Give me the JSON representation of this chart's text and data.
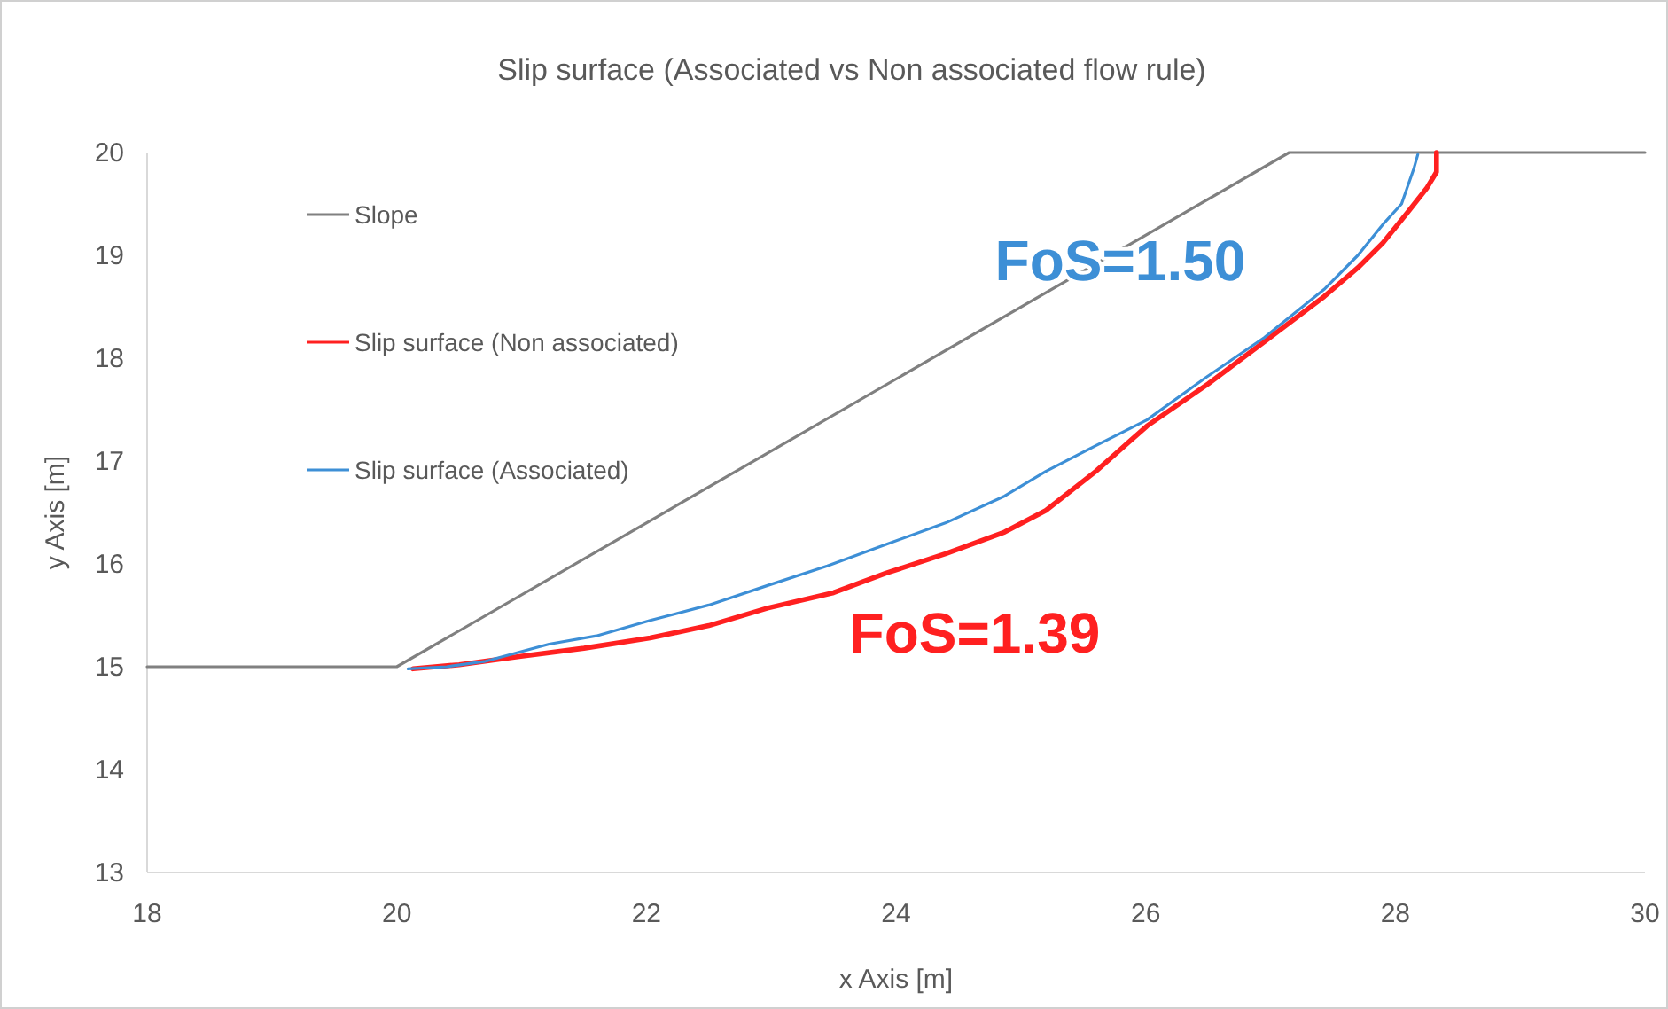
{
  "chart_data": {
    "type": "line",
    "title": "Slip surface (Associated vs Non associated flow rule)",
    "xlabel": "x Axis [m]",
    "ylabel": "y Axis [m]",
    "xlim": [
      18,
      30
    ],
    "xticks": [
      18,
      20,
      22,
      24,
      26,
      28,
      30
    ],
    "ylim": [
      13,
      20
    ],
    "yticks": [
      13,
      14,
      15,
      16,
      17,
      18,
      19,
      20
    ],
    "grid": false,
    "legend": "top left",
    "marker": "none",
    "line_style": "solid",
    "series": [
      {
        "name": "Slope",
        "color": "#808080",
        "x": [
          18,
          20,
          27.15,
          30
        ],
        "values": [
          15,
          15,
          20,
          20
        ]
      },
      {
        "name": "Slip surface (Non associated)",
        "color": "#ff2020",
        "x": [
          20.13,
          20.5,
          20.98,
          21.5,
          22.03,
          22.5,
          22.97,
          23.5,
          23.92,
          24.4,
          24.87,
          25.2,
          25.6,
          26.01,
          26.5,
          26.95,
          27.43,
          27.7,
          27.9,
          28.1,
          28.25,
          28.33,
          28.33
        ],
        "values": [
          14.98,
          15.02,
          15.1,
          15.18,
          15.28,
          15.4,
          15.57,
          15.72,
          15.91,
          16.1,
          16.31,
          16.52,
          16.9,
          17.34,
          17.75,
          18.16,
          18.6,
          18.88,
          19.12,
          19.42,
          19.65,
          19.81,
          20
        ]
      },
      {
        "name": "Slip surface (Associated)",
        "color": "#3d8fd6",
        "x": [
          20.09,
          20.4,
          20.7,
          21.22,
          21.6,
          22.03,
          22.5,
          22.97,
          23.45,
          23.92,
          24.4,
          24.87,
          25.2,
          25.6,
          26.01,
          26.48,
          26.95,
          27.43,
          27.7,
          27.9,
          28.05,
          28.09,
          28.15,
          28.18
        ],
        "values": [
          14.98,
          15,
          15.05,
          15.22,
          15.3,
          15.45,
          15.6,
          15.79,
          15.98,
          16.19,
          16.4,
          16.66,
          16.9,
          17.15,
          17.4,
          17.81,
          18.2,
          18.67,
          19.0,
          19.3,
          19.5,
          19.64,
          19.85,
          19.98
        ]
      }
    ],
    "annotations": [
      "FoS=1.50",
      "FoS=1.39"
    ]
  }
}
